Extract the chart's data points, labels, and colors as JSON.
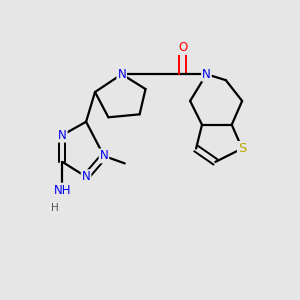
{
  "background_color": "#e6e6e6",
  "bond_color": "#000000",
  "bond_width": 1.6,
  "atom_colors": {
    "C": "#000000",
    "N": "#0000ee",
    "O": "#ff0000",
    "S": "#bbaa00",
    "H": "#555555"
  },
  "font_size_atom": 8.5,
  "fig_width": 3.0,
  "fig_height": 3.0,
  "dpi": 100
}
